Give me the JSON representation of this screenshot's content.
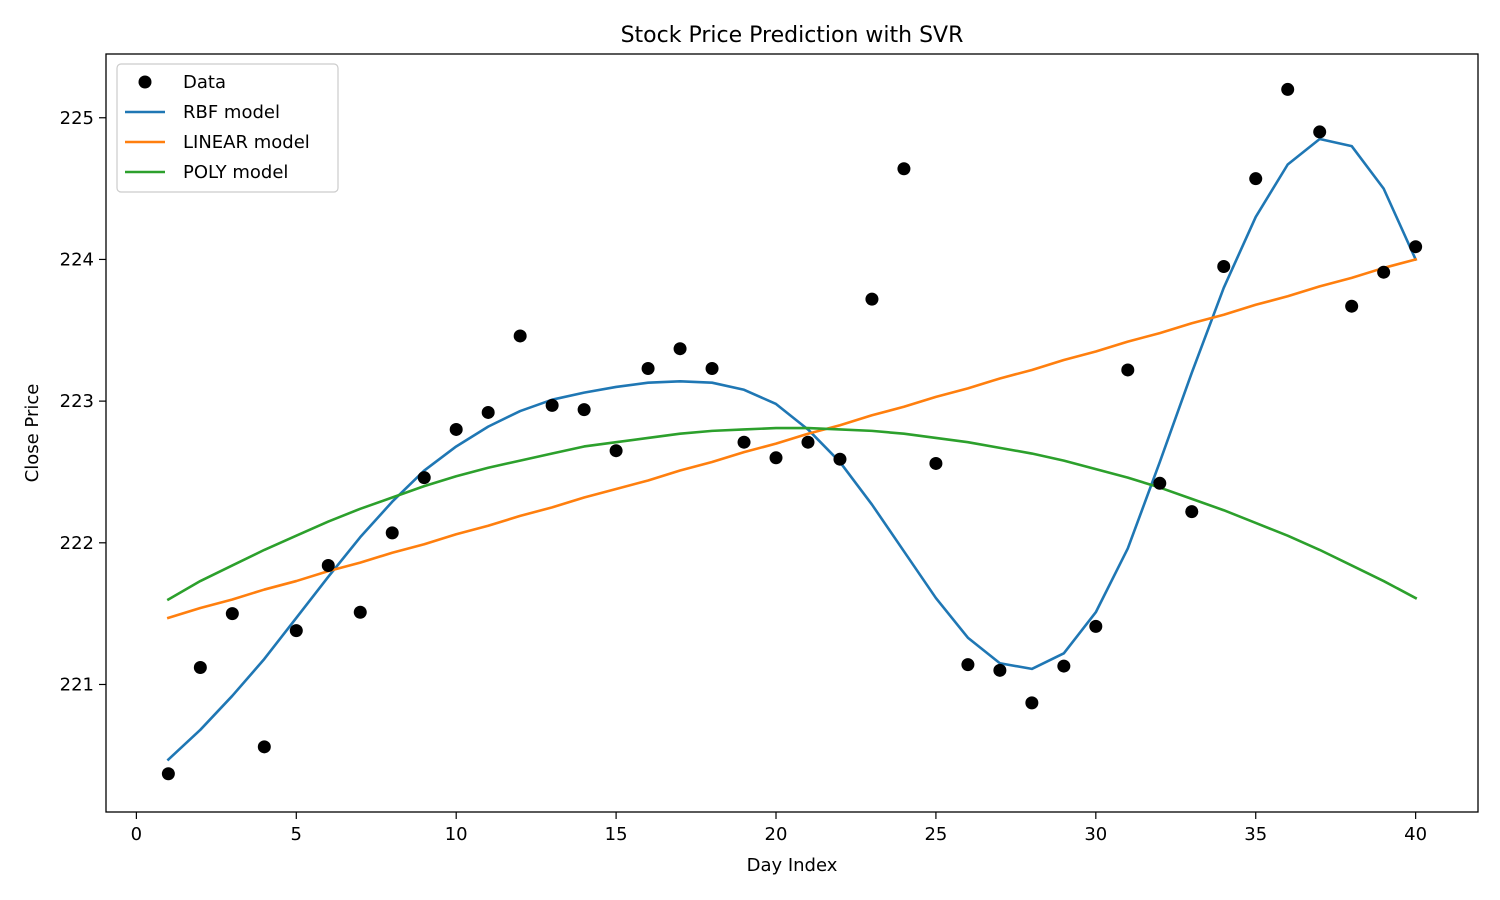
{
  "chart_data": {
    "type": "scatter",
    "title": "Stock Price Prediction with SVR",
    "xlabel": "Day Index",
    "ylabel": "Close Price",
    "xlim": [
      -0.95,
      41.95
    ],
    "ylim": [
      220.1,
      225.45
    ],
    "x_ticks": [
      0,
      5,
      10,
      15,
      20,
      25,
      30,
      35,
      40
    ],
    "y_ticks": [
      221,
      222,
      223,
      224,
      225
    ],
    "grid": false,
    "legend_position": "top-left",
    "x": [
      1,
      2,
      3,
      4,
      5,
      6,
      7,
      8,
      9,
      10,
      11,
      12,
      13,
      14,
      15,
      16,
      17,
      18,
      19,
      20,
      21,
      22,
      23,
      24,
      25,
      26,
      27,
      28,
      29,
      30,
      31,
      32,
      33,
      34,
      35,
      36,
      37,
      38,
      39,
      40
    ],
    "series": [
      {
        "name": "Data",
        "kind": "scatter",
        "color": "#000000",
        "values": [
          220.37,
          221.12,
          221.5,
          220.56,
          221.38,
          221.84,
          221.51,
          222.07,
          222.46,
          222.8,
          222.92,
          223.46,
          222.97,
          222.94,
          222.65,
          223.23,
          223.37,
          223.23,
          222.71,
          222.6,
          222.71,
          222.59,
          223.72,
          224.64,
          222.56,
          221.14,
          221.1,
          220.87,
          221.13,
          221.41,
          223.22,
          222.42,
          222.22,
          223.95,
          224.57,
          225.2,
          224.9,
          223.67,
          223.91,
          224.09
        ]
      },
      {
        "name": "RBF model",
        "kind": "line",
        "color": "#1f77b4",
        "values": [
          220.47,
          220.68,
          220.92,
          221.18,
          221.47,
          221.76,
          222.04,
          222.29,
          222.51,
          222.68,
          222.82,
          222.93,
          223.01,
          223.06,
          223.1,
          223.13,
          223.14,
          223.13,
          223.08,
          222.98,
          222.8,
          222.57,
          222.27,
          221.94,
          221.61,
          221.33,
          221.15,
          221.11,
          221.22,
          221.51,
          221.96,
          222.57,
          223.2,
          223.8,
          224.3,
          224.67,
          224.85,
          224.8,
          224.5,
          224.0
        ]
      },
      {
        "name": "LINEAR model",
        "kind": "line",
        "color": "#ff7f0e",
        "values": [
          221.47,
          221.54,
          221.6,
          221.67,
          221.73,
          221.8,
          221.86,
          221.93,
          221.99,
          222.06,
          222.12,
          222.19,
          222.25,
          222.32,
          222.38,
          222.44,
          222.51,
          222.57,
          222.64,
          222.7,
          222.77,
          222.83,
          222.9,
          222.96,
          223.03,
          223.09,
          223.16,
          223.22,
          223.29,
          223.35,
          223.42,
          223.48,
          223.55,
          223.61,
          223.68,
          223.74,
          223.81,
          223.87,
          223.94,
          224.0
        ]
      },
      {
        "name": "POLY model",
        "kind": "line",
        "color": "#2ca02c",
        "values": [
          221.6,
          221.73,
          221.84,
          221.95,
          222.05,
          222.15,
          222.24,
          222.32,
          222.4,
          222.47,
          222.53,
          222.58,
          222.63,
          222.68,
          222.71,
          222.74,
          222.77,
          222.79,
          222.8,
          222.81,
          222.81,
          222.8,
          222.79,
          222.77,
          222.74,
          222.71,
          222.67,
          222.63,
          222.58,
          222.52,
          222.46,
          222.39,
          222.31,
          222.23,
          222.14,
          222.05,
          221.95,
          221.84,
          221.73,
          221.61
        ]
      }
    ]
  }
}
